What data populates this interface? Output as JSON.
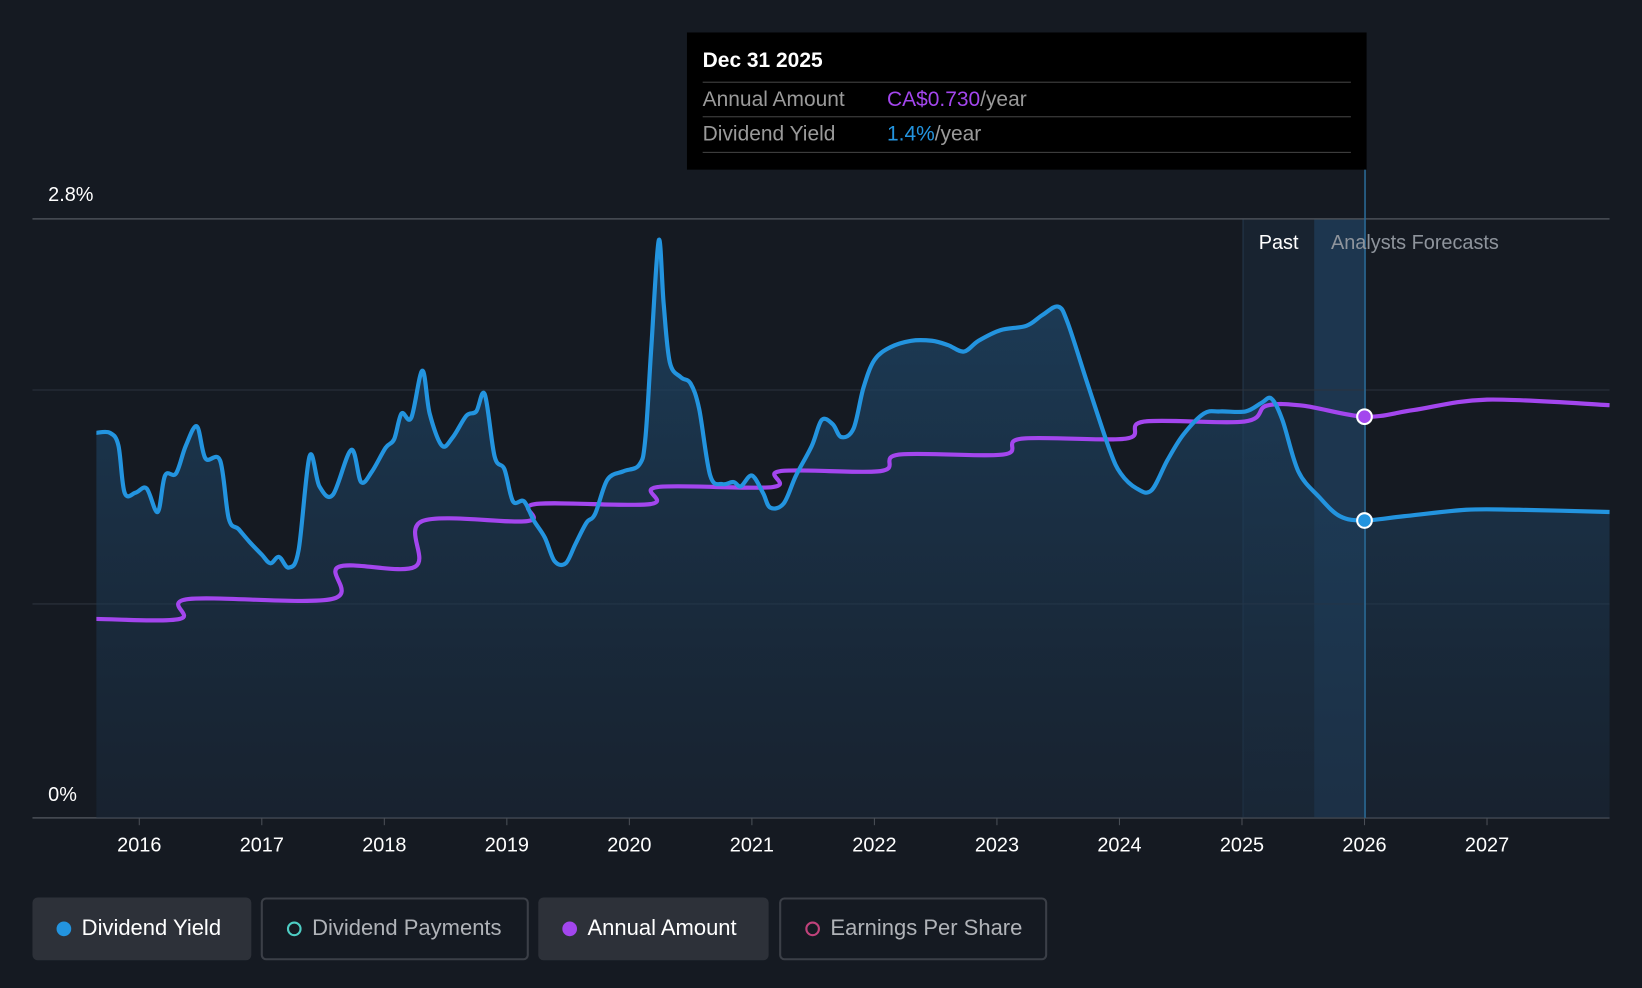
{
  "tooltip": {
    "date": "Dec 31 2025",
    "annual_amount_label": "Annual Amount",
    "annual_amount_value": "CA$0.730",
    "dividend_yield_label": "Dividend Yield",
    "dividend_yield_value": "1.4%",
    "per_year": "/year"
  },
  "colors": {
    "yield": "#2394df",
    "annual": "#a346ee",
    "payments": "#4ecdc4",
    "eps": "#c0427b"
  },
  "legend": [
    {
      "label": "Dividend Yield",
      "active": true
    },
    {
      "label": "Dividend Payments",
      "active": false
    },
    {
      "label": "Annual Amount",
      "active": true
    },
    {
      "label": "Earnings Per Share",
      "active": false
    }
  ],
  "chart_data": {
    "type": "line",
    "y_ticks": [
      "2.8%",
      "0%"
    ],
    "ylim": [
      0,
      2.8
    ],
    "xlim": [
      2015.65,
      2028.0
    ],
    "x_ticks": [
      "2016",
      "2017",
      "2018",
      "2019",
      "2020",
      "2021",
      "2022",
      "2023",
      "2024",
      "2025",
      "2026",
      "2027"
    ],
    "region_labels": {
      "past": "Past",
      "forecast": "Analysts Forecasts"
    },
    "highlight_date": 2026.0,
    "series": [
      {
        "name": "Dividend Yield",
        "unit": "%",
        "points": [
          [
            2015.65,
            1.8
          ],
          [
            2015.76,
            1.8
          ],
          [
            2015.83,
            1.74
          ],
          [
            2015.88,
            1.52
          ],
          [
            2015.97,
            1.52
          ],
          [
            2016.06,
            1.54
          ],
          [
            2016.15,
            1.43
          ],
          [
            2016.21,
            1.6
          ],
          [
            2016.3,
            1.61
          ],
          [
            2016.38,
            1.74
          ],
          [
            2016.47,
            1.83
          ],
          [
            2016.54,
            1.68
          ],
          [
            2016.66,
            1.67
          ],
          [
            2016.73,
            1.4
          ],
          [
            2016.81,
            1.35
          ],
          [
            2016.9,
            1.29
          ],
          [
            2017.0,
            1.23
          ],
          [
            2017.07,
            1.19
          ],
          [
            2017.14,
            1.22
          ],
          [
            2017.22,
            1.17
          ],
          [
            2017.3,
            1.25
          ],
          [
            2017.39,
            1.69
          ],
          [
            2017.47,
            1.55
          ],
          [
            2017.58,
            1.51
          ],
          [
            2017.73,
            1.72
          ],
          [
            2017.81,
            1.57
          ],
          [
            2017.9,
            1.62
          ],
          [
            2018.01,
            1.73
          ],
          [
            2018.08,
            1.77
          ],
          [
            2018.14,
            1.89
          ],
          [
            2018.22,
            1.87
          ],
          [
            2018.31,
            2.09
          ],
          [
            2018.37,
            1.89
          ],
          [
            2018.47,
            1.74
          ],
          [
            2018.56,
            1.78
          ],
          [
            2018.67,
            1.88
          ],
          [
            2018.75,
            1.9
          ],
          [
            2018.82,
            1.98
          ],
          [
            2018.9,
            1.69
          ],
          [
            2018.98,
            1.63
          ],
          [
            2019.05,
            1.48
          ],
          [
            2019.14,
            1.48
          ],
          [
            2019.22,
            1.39
          ],
          [
            2019.31,
            1.31
          ],
          [
            2019.39,
            1.2
          ],
          [
            2019.48,
            1.19
          ],
          [
            2019.56,
            1.28
          ],
          [
            2019.65,
            1.38
          ],
          [
            2019.72,
            1.42
          ],
          [
            2019.82,
            1.58
          ],
          [
            2019.95,
            1.62
          ],
          [
            2020.08,
            1.65
          ],
          [
            2020.13,
            1.77
          ],
          [
            2020.18,
            2.21
          ],
          [
            2020.24,
            2.7
          ],
          [
            2020.28,
            2.4
          ],
          [
            2020.33,
            2.13
          ],
          [
            2020.42,
            2.06
          ],
          [
            2020.5,
            2.03
          ],
          [
            2020.57,
            1.91
          ],
          [
            2020.66,
            1.6
          ],
          [
            2020.76,
            1.56
          ],
          [
            2020.85,
            1.57
          ],
          [
            2020.91,
            1.55
          ],
          [
            2021.0,
            1.6
          ],
          [
            2021.09,
            1.52
          ],
          [
            2021.15,
            1.45
          ],
          [
            2021.26,
            1.47
          ],
          [
            2021.36,
            1.6
          ],
          [
            2021.49,
            1.74
          ],
          [
            2021.57,
            1.86
          ],
          [
            2021.66,
            1.84
          ],
          [
            2021.73,
            1.78
          ],
          [
            2021.83,
            1.82
          ],
          [
            2021.91,
            2.01
          ],
          [
            2022.0,
            2.14
          ],
          [
            2022.13,
            2.2
          ],
          [
            2022.3,
            2.23
          ],
          [
            2022.47,
            2.23
          ],
          [
            2022.6,
            2.21
          ],
          [
            2022.73,
            2.18
          ],
          [
            2022.85,
            2.23
          ],
          [
            2023.03,
            2.28
          ],
          [
            2023.24,
            2.3
          ],
          [
            2023.37,
            2.35
          ],
          [
            2023.5,
            2.39
          ],
          [
            2023.58,
            2.31
          ],
          [
            2023.75,
            2.01
          ],
          [
            2023.92,
            1.72
          ],
          [
            2024.01,
            1.61
          ],
          [
            2024.14,
            1.54
          ],
          [
            2024.26,
            1.53
          ],
          [
            2024.39,
            1.67
          ],
          [
            2024.52,
            1.79
          ],
          [
            2024.69,
            1.89
          ],
          [
            2024.82,
            1.9
          ],
          [
            2025.03,
            1.9
          ],
          [
            2025.16,
            1.94
          ],
          [
            2025.24,
            1.96
          ],
          [
            2025.33,
            1.86
          ],
          [
            2025.46,
            1.62
          ],
          [
            2025.63,
            1.5
          ],
          [
            2025.8,
            1.41
          ],
          [
            2026.0,
            1.39
          ],
          [
            2026.32,
            1.41
          ],
          [
            2026.83,
            1.44
          ],
          [
            2027.26,
            1.44
          ],
          [
            2028.0,
            1.43
          ]
        ]
      },
      {
        "name": "Annual Amount",
        "unit": "CA$",
        "ylim": [
          0,
          1.09
        ],
        "points": [
          [
            2015.65,
            0.362
          ],
          [
            2016.33,
            0.362
          ],
          [
            2016.4,
            0.398
          ],
          [
            2017.57,
            0.398
          ],
          [
            2017.63,
            0.457
          ],
          [
            2018.25,
            0.457
          ],
          [
            2018.31,
            0.54
          ],
          [
            2019.17,
            0.54
          ],
          [
            2019.23,
            0.571
          ],
          [
            2020.17,
            0.571
          ],
          [
            2020.23,
            0.602
          ],
          [
            2021.17,
            0.602
          ],
          [
            2021.23,
            0.631
          ],
          [
            2022.05,
            0.631
          ],
          [
            2022.2,
            0.661
          ],
          [
            2023.05,
            0.661
          ],
          [
            2023.2,
            0.69
          ],
          [
            2024.05,
            0.69
          ],
          [
            2024.2,
            0.721
          ],
          [
            2025.02,
            0.721
          ],
          [
            2025.2,
            0.75
          ],
          [
            2025.5,
            0.75
          ],
          [
            2026.0,
            0.73
          ],
          [
            2026.4,
            0.742
          ],
          [
            2027.0,
            0.761
          ],
          [
            2028.0,
            0.751
          ]
        ]
      }
    ]
  }
}
